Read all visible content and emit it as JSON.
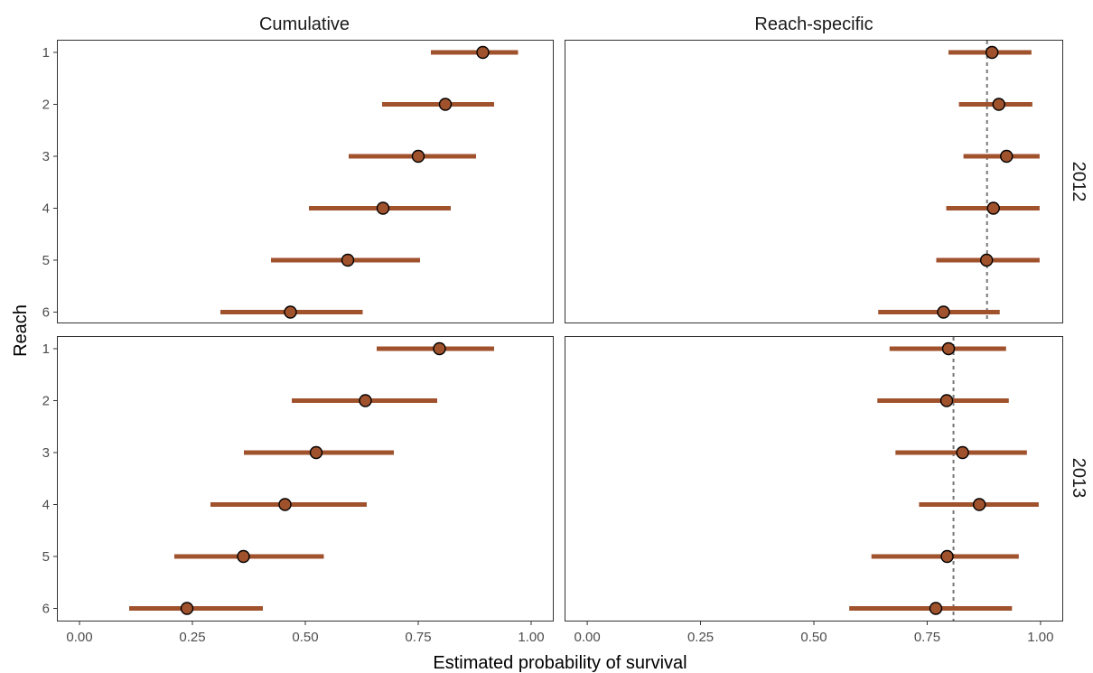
{
  "chart_data": {
    "type": "scatter",
    "subtype": "faceted point-range (estimate with interval)",
    "xlabel": "Estimated probability of survival",
    "ylabel": "Reach",
    "xlim": [
      -0.05,
      1.05
    ],
    "x_ticks": [
      "0.00",
      "0.25",
      "0.50",
      "0.75",
      "1.00"
    ],
    "x_tick_values": [
      0,
      0.25,
      0.5,
      0.75,
      1.0
    ],
    "categories": [
      "1",
      "2",
      "3",
      "4",
      "5",
      "6"
    ],
    "columns": [
      "Cumulative",
      "Reach-specific"
    ],
    "rows": [
      "2012",
      "2013"
    ],
    "grid": false,
    "point_color": "#a0522d",
    "interval_color": "#a0522d",
    "reference_line_color": "#777777",
    "panels": [
      {
        "column": "Cumulative",
        "row": "2012",
        "estimate": [
          0.893,
          0.81,
          0.75,
          0.672,
          0.594,
          0.467
        ],
        "lower": [
          0.778,
          0.67,
          0.596,
          0.508,
          0.424,
          0.312
        ],
        "upper": [
          0.971,
          0.918,
          0.878,
          0.822,
          0.754,
          0.627
        ]
      },
      {
        "column": "Reach-specific",
        "row": "2012",
        "estimate": [
          0.893,
          0.908,
          0.925,
          0.896,
          0.881,
          0.786
        ],
        "lower": [
          0.797,
          0.82,
          0.83,
          0.792,
          0.77,
          0.642
        ],
        "upper": [
          0.98,
          0.982,
          0.998,
          0.998,
          0.998,
          0.91
        ],
        "reference_line": 0.882
      },
      {
        "column": "Cumulative",
        "row": "2013",
        "estimate": [
          0.797,
          0.633,
          0.524,
          0.455,
          0.363,
          0.238
        ],
        "lower": [
          0.658,
          0.47,
          0.364,
          0.29,
          0.21,
          0.11
        ],
        "upper": [
          0.918,
          0.792,
          0.696,
          0.636,
          0.541,
          0.406
        ]
      },
      {
        "column": "Reach-specific",
        "row": "2013",
        "estimate": [
          0.797,
          0.793,
          0.828,
          0.865,
          0.794,
          0.769
        ],
        "lower": [
          0.667,
          0.64,
          0.68,
          0.732,
          0.627,
          0.578
        ],
        "upper": [
          0.924,
          0.93,
          0.97,
          0.996,
          0.952,
          0.937
        ],
        "reference_line": 0.808
      }
    ]
  }
}
